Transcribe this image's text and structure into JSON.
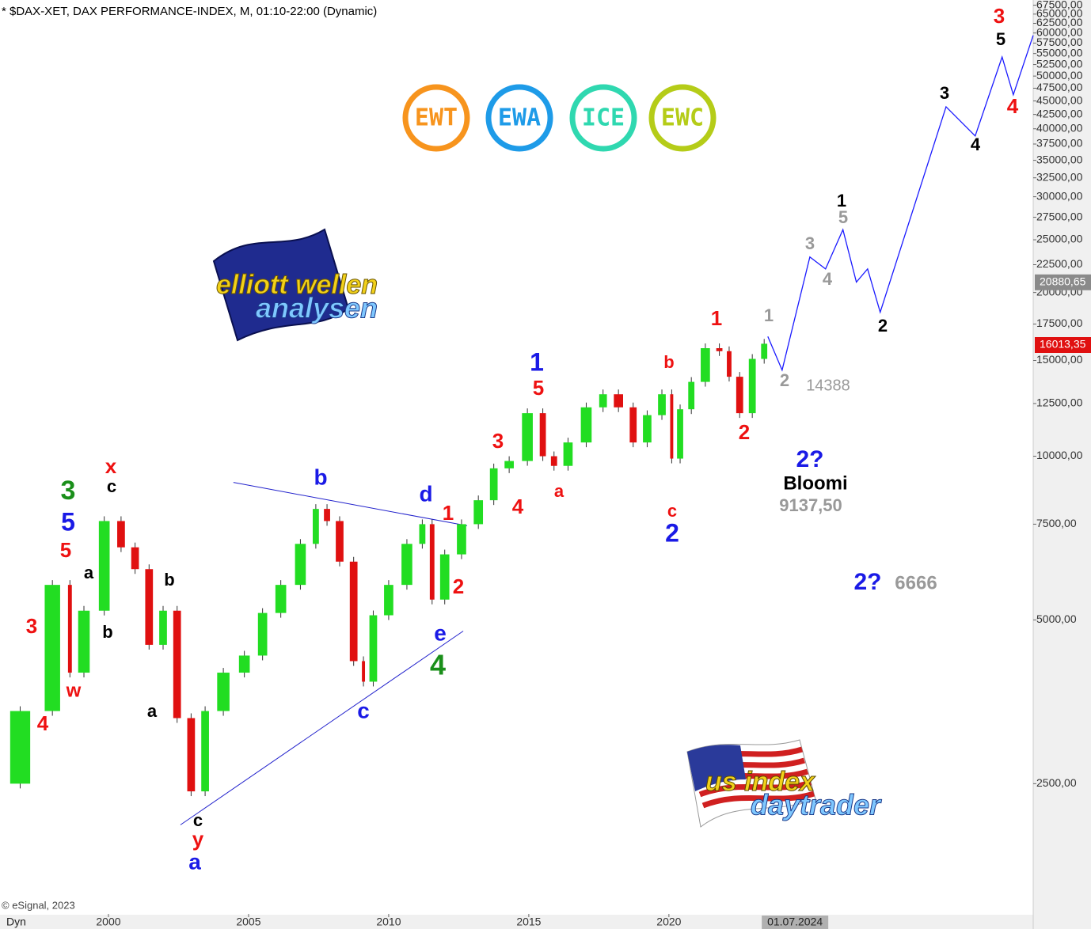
{
  "chart_data": {
    "type": "candlestick",
    "title": "* $DAX-XET, DAX PERFORMANCE-INDEX, M, 01:10-22:00 (Dynamic)",
    "source": "© eSignal, 2023",
    "x": [
      1996.2,
      1997.5,
      1998.5,
      1998.75,
      1999.5,
      2000.2,
      2000.7,
      2001.2,
      2001.7,
      2002.2,
      2002.7,
      2003.2,
      2003.7,
      2004.5,
      2005.2,
      2005.8,
      2006.5,
      2007.2,
      2007.6,
      2008.0,
      2008.5,
      2009.0,
      2009.2,
      2009.7,
      2010.3,
      2011.0,
      2011.4,
      2011.7,
      2012.3,
      2012.9,
      2013.5,
      2014.0,
      2014.6,
      2015.3,
      2015.7,
      2016.1,
      2016.7,
      2017.4,
      2017.9,
      2018.5,
      2018.95,
      2019.5,
      2020.0,
      2020.2,
      2020.6,
      2021.0,
      2021.6,
      2022.0,
      2022.3,
      2022.75,
      2023.2,
      2023.6
    ],
    "values": [
      2500,
      3400,
      5800,
      4000,
      5200,
      7600,
      6800,
      6200,
      4500,
      5200,
      3300,
      2420,
      3400,
      4000,
      4300,
      5150,
      5800,
      6900,
      8000,
      7600,
      6400,
      4200,
      3850,
      5100,
      5800,
      6900,
      7500,
      5450,
      6600,
      7500,
      8300,
      9500,
      9800,
      12000,
      10000,
      9600,
      10600,
      12300,
      13000,
      12300,
      10600,
      11900,
      13000,
      9900,
      12200,
      13700,
      15800,
      15600,
      14000,
      12000,
      15100,
      16100
    ],
    "colors": {
      "up": "#22dd22",
      "down": "#e01010"
    },
    "xlim": [
      1996.13,
      2033
    ],
    "xticks": [
      2000,
      2005,
      2010,
      2015,
      2020
    ],
    "ylim": [
      1440,
      69000
    ],
    "log_scale": true,
    "yticks": [
      {
        "value": 2500,
        "label": "2500,00"
      },
      {
        "value": 5000,
        "label": "5000,00"
      },
      {
        "value": 7500,
        "label": "7500,00"
      },
      {
        "value": 10000,
        "label": "10000,00"
      },
      {
        "value": 12500,
        "label": "12500,00"
      },
      {
        "value": 15000,
        "label": "15000,00"
      },
      {
        "value": 17500,
        "label": "17500,00"
      },
      {
        "value": 20000,
        "label": "20000,00"
      },
      {
        "value": 22500,
        "label": "22500,00"
      },
      {
        "value": 25000,
        "label": "25000,00"
      },
      {
        "value": 27500,
        "label": "27500,00"
      },
      {
        "value": 30000,
        "label": "30000,00"
      },
      {
        "value": 32500,
        "label": "32500,00"
      },
      {
        "value": 35000,
        "label": "35000,00"
      },
      {
        "value": 37500,
        "label": "37500,00"
      },
      {
        "value": 40000,
        "label": "40000,00"
      },
      {
        "value": 42500,
        "label": "42500,00"
      },
      {
        "value": 45000,
        "label": "45000,00"
      },
      {
        "value": 47500,
        "label": "47500,00"
      },
      {
        "value": 50000,
        "label": "50000,00"
      },
      {
        "value": 52500,
        "label": "52500,00"
      },
      {
        "value": 55000,
        "label": "55000,00"
      },
      {
        "value": 57500,
        "label": "57500,00"
      },
      {
        "value": 60000,
        "label": "60000,00"
      },
      {
        "value": 62500,
        "label": "62500,00"
      },
      {
        "value": 65000,
        "label": "65000,00"
      },
      {
        "value": 67500,
        "label": "67500,00"
      }
    ],
    "projection": {
      "color": "#1a1aff",
      "x": [
        2023.53,
        2024.04,
        2025.03,
        2025.59,
        2026.21,
        2026.69,
        2027.09,
        2027.54,
        2029.89,
        2030.93,
        2031.89,
        2032.29,
        2033.0
      ],
      "values": [
        16600,
        14400,
        23250,
        22100,
        26100,
        20900,
        22100,
        18400,
        43900,
        38800,
        54200,
        46200,
        59400
      ]
    },
    "trendlines": {
      "color": "#2222cc",
      "lines": [
        {
          "x": [
            2004.46,
            2012.8
          ],
          "values": [
            8950,
            7450
          ]
        },
        {
          "x": [
            2002.57,
            2012.66
          ],
          "values": [
            2100,
            4770
          ]
        }
      ]
    },
    "price_tags": [
      {
        "value": 20880.65,
        "label": "20880,65",
        "color": "#8a8a8a"
      },
      {
        "value": 16013.35,
        "label": "16013,35",
        "color": "#e01010"
      }
    ],
    "date_marker": {
      "value": 2024.5,
      "label": "01.07.2024"
    },
    "annotations": [
      {
        "text": "3",
        "color": "#ee1111"
      },
      {
        "text": "4",
        "color": "#ee1111"
      },
      {
        "text": "3",
        "color": "#1a8f1a"
      },
      {
        "text": "5",
        "color": "#1a1ae6"
      },
      {
        "text": "5",
        "color": "#ee1111"
      },
      {
        "text": "a",
        "color": "#000000"
      },
      {
        "text": "b",
        "color": "#000000"
      },
      {
        "text": "w",
        "color": "#ee1111"
      },
      {
        "text": "x",
        "color": "#ee1111"
      },
      {
        "text": "c",
        "color": "#000000"
      },
      {
        "text": "b",
        "color": "#000000"
      },
      {
        "text": "a",
        "color": "#000000"
      },
      {
        "text": "c",
        "color": "#000000"
      },
      {
        "text": "y",
        "color": "#ee1111"
      },
      {
        "text": "a",
        "color": "#1a1ae6"
      },
      {
        "text": "b",
        "color": "#1a1ae6"
      },
      {
        "text": "d",
        "color": "#1a1ae6"
      },
      {
        "text": "1",
        "color": "#ee1111"
      },
      {
        "text": "2",
        "color": "#ee1111"
      },
      {
        "text": "e",
        "color": "#1a1ae6"
      },
      {
        "text": "4",
        "color": "#1a8f1a"
      },
      {
        "text": "c",
        "color": "#1a1ae6"
      },
      {
        "text": "3",
        "color": "#ee1111"
      },
      {
        "text": "4",
        "color": "#ee1111"
      },
      {
        "text": "1",
        "color": "#1a1ae6"
      },
      {
        "text": "5",
        "color": "#ee1111"
      },
      {
        "text": "a",
        "color": "#ee1111"
      },
      {
        "text": "b",
        "color": "#ee1111"
      },
      {
        "text": "c",
        "color": "#ee1111"
      },
      {
        "text": "2",
        "color": "#1a1ae6"
      },
      {
        "text": "1",
        "color": "#ee1111"
      },
      {
        "text": "2",
        "color": "#ee1111"
      },
      {
        "text": "1",
        "color": "#999999"
      },
      {
        "text": "2",
        "color": "#999999"
      },
      {
        "text": "14388",
        "color": "#999999"
      },
      {
        "text": "2?",
        "color": "#1a1ae6"
      },
      {
        "text": "Bloomi",
        "color": "#000000"
      },
      {
        "text": "9137,50",
        "color": "#999999"
      },
      {
        "text": "2?",
        "color": "#1a1ae6"
      },
      {
        "text": "6666",
        "color": "#999999"
      },
      {
        "text": "3",
        "color": "#999999"
      },
      {
        "text": "4",
        "color": "#999999"
      },
      {
        "text": "1",
        "color": "#000000"
      },
      {
        "text": "5",
        "color": "#999999"
      },
      {
        "text": "2",
        "color": "#000000"
      },
      {
        "text": "3",
        "color": "#000000"
      },
      {
        "text": "4",
        "color": "#000000"
      },
      {
        "text": "4",
        "color": "#ee1111"
      },
      {
        "text": "5",
        "color": "#000000"
      },
      {
        "text": "3",
        "color": "#ee1111"
      }
    ]
  },
  "logos": {
    "badges": [
      {
        "text": "EWT",
        "color": "#f7941d"
      },
      {
        "text": "EWA",
        "color": "#1e9be8"
      },
      {
        "text": "ICE",
        "color": "#2fd8b0"
      },
      {
        "text": "EWC",
        "color": "#b5cc18"
      }
    ],
    "elliott": [
      "elliott wellen",
      "analysen"
    ],
    "us": [
      "us index",
      "daytrader"
    ],
    "dyn": "Dyn"
  }
}
